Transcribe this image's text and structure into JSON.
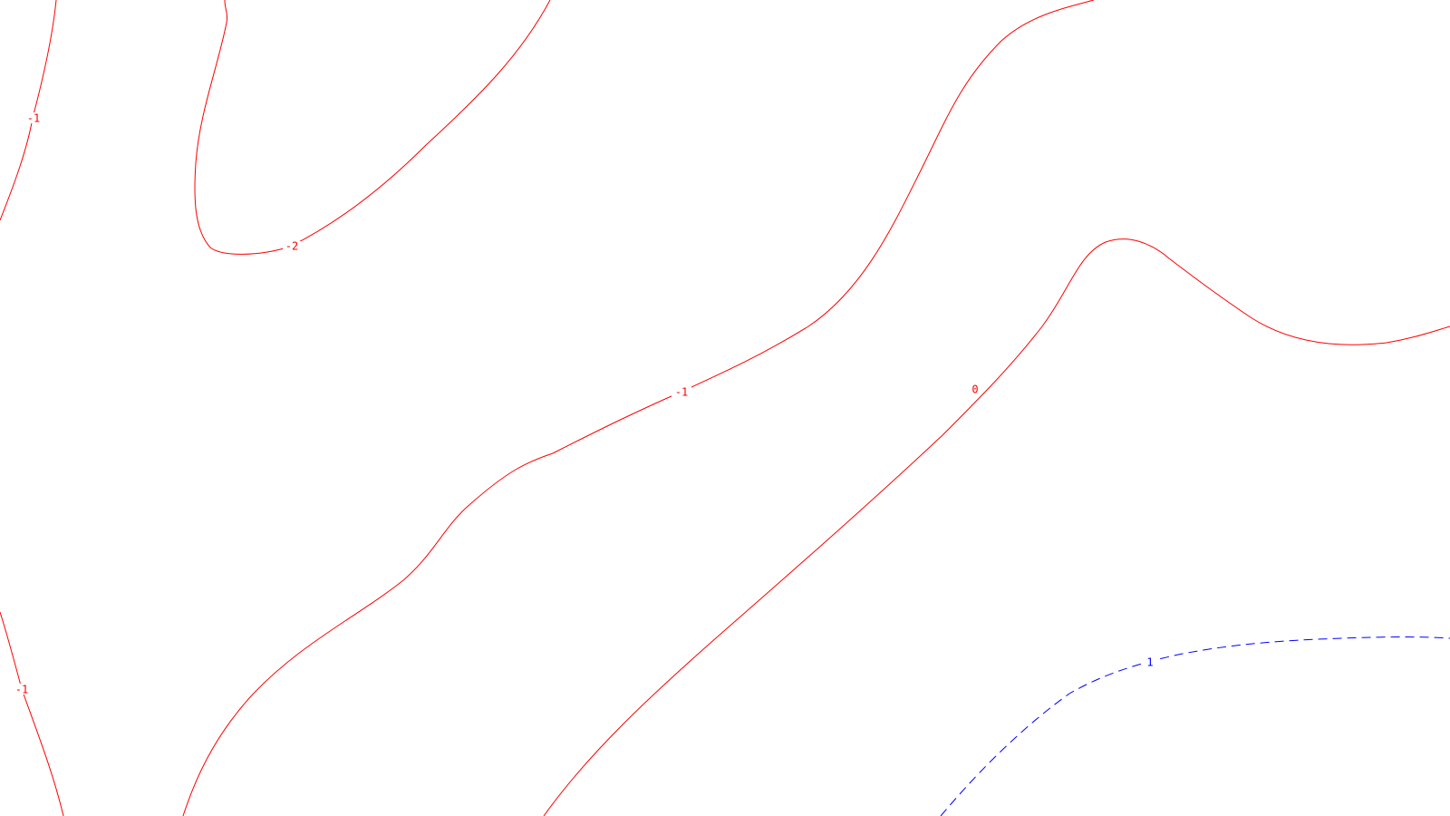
{
  "styles": {
    "positive_color": "#ff0000",
    "negative_color": "#0000ff",
    "background": "#ffffff"
  },
  "contours": [
    {
      "id": "contour-minus1-left-top",
      "label": "-1",
      "color": "#ff0000",
      "dashed": false
    },
    {
      "id": "contour-minus2",
      "label": "-2",
      "color": "#ff0000",
      "dashed": false
    },
    {
      "id": "contour-minus1-center",
      "label": "-1",
      "color": "#ff0000",
      "dashed": false
    },
    {
      "id": "contour-zero",
      "label": "0",
      "color": "#ff0000",
      "dashed": false
    },
    {
      "id": "contour-minus1-left-bottom",
      "label": "-1",
      "color": "#ff0000",
      "dashed": false
    },
    {
      "id": "contour-plus1",
      "label": "1",
      "color": "#0000ff",
      "dashed": true
    }
  ]
}
